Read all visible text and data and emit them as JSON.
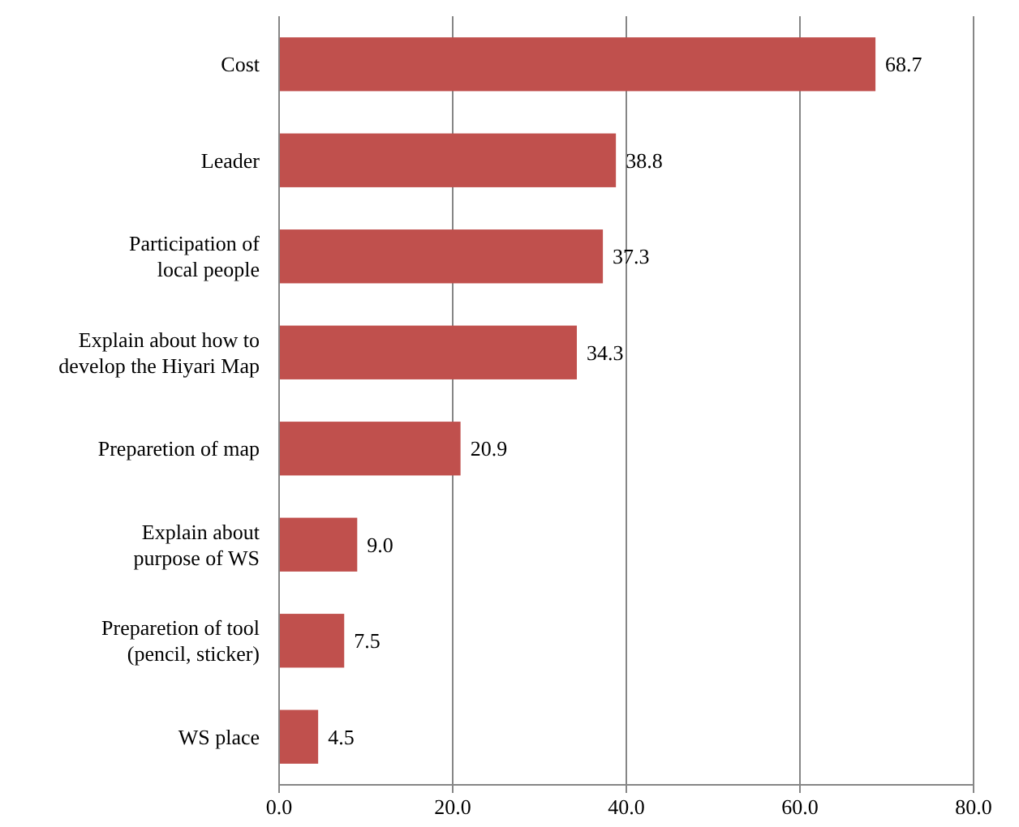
{
  "chart_data": {
    "type": "bar",
    "orientation": "horizontal",
    "categories": [
      "Cost",
      "Leader",
      "Participation of\nlocal people",
      "Explain about how to\ndevelop the Hiyari Map",
      "Preparetion of map",
      "Explain about\npurpose of WS",
      "Preparetion of tool\n(pencil, sticker)",
      "WS place"
    ],
    "values": [
      68.7,
      38.8,
      37.3,
      34.3,
      20.9,
      9.0,
      7.5,
      4.5
    ],
    "value_labels": [
      "68.7",
      "38.8",
      "37.3",
      "34.3",
      "20.9",
      "9.0",
      "7.5",
      "4.5"
    ],
    "color": "#c0504d",
    "xlim": [
      0,
      80
    ],
    "xticks": [
      {
        "value": 0,
        "label": "0.0"
      },
      {
        "value": 20,
        "label": "20.0"
      },
      {
        "value": 40,
        "label": "40.0"
      },
      {
        "value": 60,
        "label": "60.0"
      },
      {
        "value": 80,
        "label": "80.0"
      }
    ],
    "grid": "x"
  }
}
